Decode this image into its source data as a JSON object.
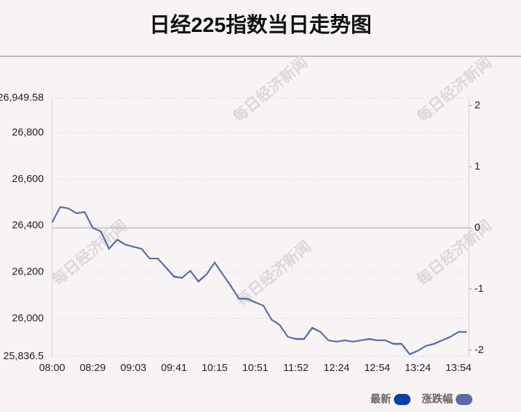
{
  "chart_data": {
    "type": "line",
    "title": "日经225指数当日走势图",
    "watermark": "每日经济新闻",
    "categories": [
      "08:00",
      null,
      null,
      null,
      null,
      "08:29",
      null,
      null,
      null,
      null,
      "09:03",
      null,
      null,
      null,
      null,
      "09:41",
      null,
      null,
      null,
      null,
      "10:15",
      null,
      null,
      null,
      null,
      "10:51",
      null,
      null,
      null,
      null,
      "11:52",
      null,
      null,
      null,
      null,
      "12:24",
      null,
      null,
      null,
      null,
      "12:54",
      null,
      null,
      null,
      null,
      "13:24",
      null,
      null,
      null,
      null,
      "13:54",
      null
    ],
    "series": [
      {
        "name": "最新",
        "color": "#0d3fa6",
        "values": [
          26414,
          26480,
          26474,
          26453,
          26459,
          26390,
          26375,
          26300,
          26339,
          26318,
          26309,
          26300,
          26258,
          26258,
          26220,
          26181,
          26175,
          26205,
          26160,
          26190,
          26241,
          26190,
          26139,
          26085,
          26085,
          26070,
          26055,
          25995,
          25972,
          25921,
          25912,
          25912,
          25960,
          25942,
          25906,
          25900,
          25906,
          25900,
          25906,
          25912,
          25906,
          25906,
          25891,
          25891,
          25846,
          25861,
          25882,
          25891,
          25906,
          25921,
          25942,
          25942
        ]
      },
      {
        "name": "涨跌幅",
        "color": "#5b6e9e",
        "axis": "y2",
        "values": [
          0.09,
          0.34,
          0.32,
          0.24,
          0.26,
          0,
          -0.06,
          -0.34,
          -0.19,
          -0.27,
          -0.31,
          -0.34,
          -0.5,
          -0.5,
          -0.65,
          -0.8,
          -0.82,
          -0.7,
          -0.88,
          -0.76,
          -0.57,
          -0.76,
          -0.95,
          -1.16,
          -1.16,
          -1.22,
          -1.27,
          -1.5,
          -1.59,
          -1.78,
          -1.82,
          -1.82,
          -1.64,
          -1.7,
          -1.84,
          -1.86,
          -1.84,
          -1.86,
          -1.84,
          -1.82,
          -1.84,
          -1.84,
          -1.9,
          -1.9,
          -2.07,
          -2.01,
          -1.93,
          -1.9,
          -1.84,
          -1.78,
          -1.7,
          -1.7
        ]
      }
    ],
    "ylim": [
      25836.5,
      26949.58
    ],
    "yticks": [
      {
        "value": 26949.58,
        "label": "26,949.58"
      },
      {
        "value": 26800,
        "label": "26,800"
      },
      {
        "value": 26600,
        "label": "26,600"
      },
      {
        "value": 26400,
        "label": "26,400"
      },
      {
        "value": 26200,
        "label": "26,200"
      },
      {
        "value": 26000,
        "label": "26,000"
      },
      {
        "value": 25836.5,
        "label": "25,836.5"
      }
    ],
    "y2lim": [
      -2.102,
      2.125
    ],
    "y2ticks": [
      2,
      1,
      0,
      -1,
      -2
    ],
    "grid": true
  }
}
